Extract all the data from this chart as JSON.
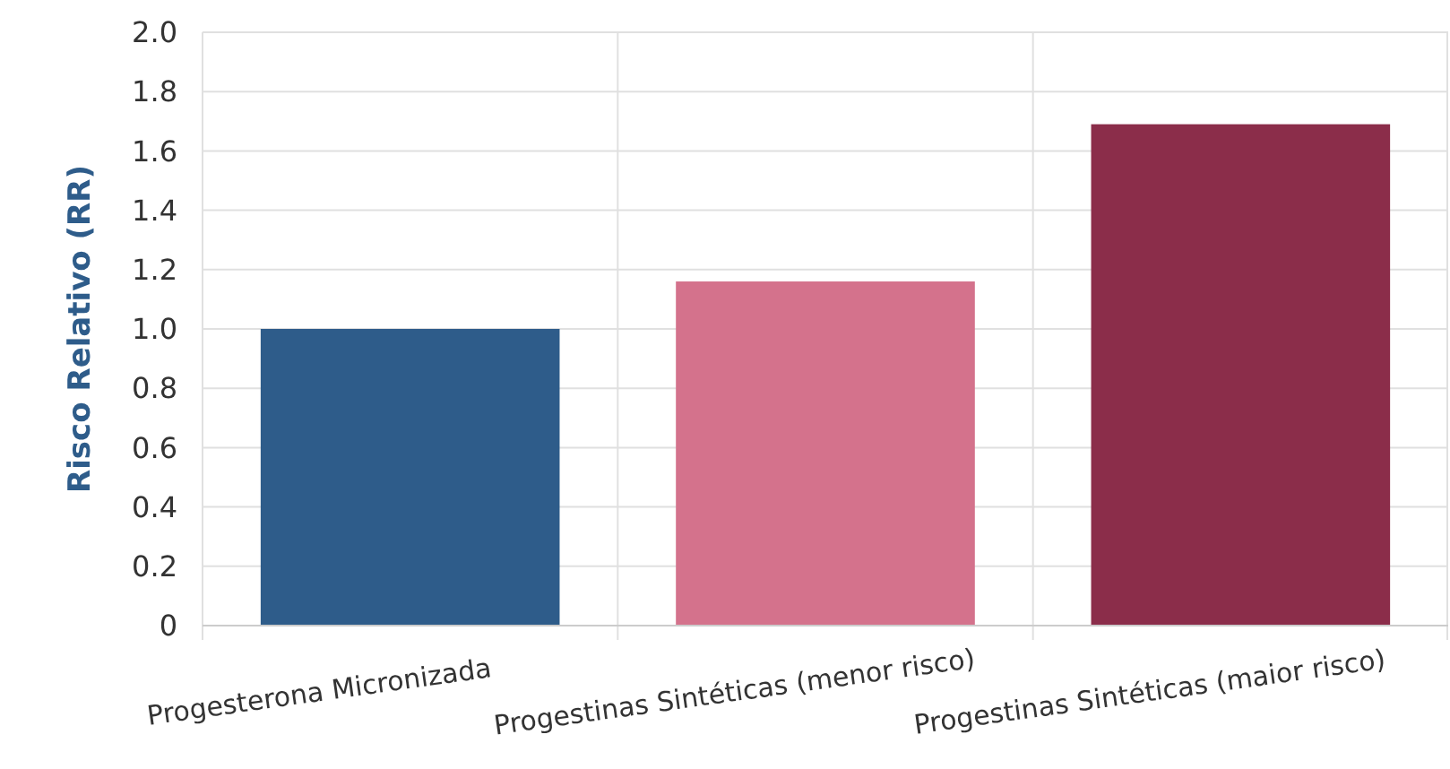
{
  "chart_data": {
    "type": "bar",
    "ylabel": "Risco Relativo (RR)",
    "categories": [
      "Progesterona Micronizada",
      "Progestinas Sintéticas (menor risco)",
      "Progestinas Sintéticas (maior risco)"
    ],
    "values": [
      1.0,
      1.16,
      1.69
    ],
    "colors": [
      "#2e5c8a",
      "#d4728c",
      "#8b2d4a"
    ],
    "ylim": [
      0,
      2
    ],
    "yticks": [
      {
        "value": 0,
        "label": "0"
      },
      {
        "value": 0.2,
        "label": "0.2"
      },
      {
        "value": 0.4,
        "label": "0.4"
      },
      {
        "value": 0.6,
        "label": "0.6"
      },
      {
        "value": 0.8,
        "label": "0.8"
      },
      {
        "value": 1,
        "label": "1.0"
      },
      {
        "value": 1.2,
        "label": "1.2"
      },
      {
        "value": 1.4,
        "label": "1.4"
      },
      {
        "value": 1.6,
        "label": "1.6"
      },
      {
        "value": 1.8,
        "label": "1.8"
      },
      {
        "value": 2,
        "label": "2.0"
      }
    ],
    "grid": true
  }
}
